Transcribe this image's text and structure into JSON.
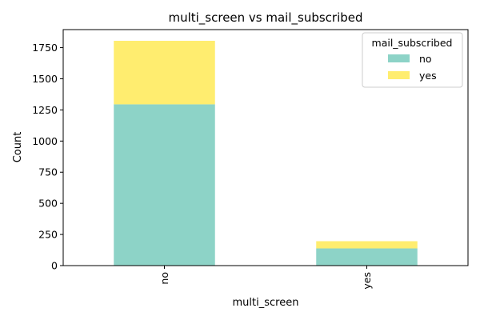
{
  "chart_data": {
    "type": "bar",
    "stacked": true,
    "title": "multi_screen vs mail_subscribed",
    "xlabel": "multi_screen",
    "ylabel": "Count",
    "categories": [
      "no",
      "yes"
    ],
    "ylim": [
      0,
      1895
    ],
    "yticks": [
      0,
      250,
      500,
      750,
      1000,
      1250,
      1500,
      1750
    ],
    "grid": false,
    "legend": {
      "title": "mail_subscribed",
      "placement": "top-right"
    },
    "series": [
      {
        "name": "no",
        "color": "#8dd3c7",
        "values": [
          1295,
          138
        ]
      },
      {
        "name": "yes",
        "color": "#ffed6f",
        "values": [
          510,
          58
        ]
      }
    ]
  }
}
